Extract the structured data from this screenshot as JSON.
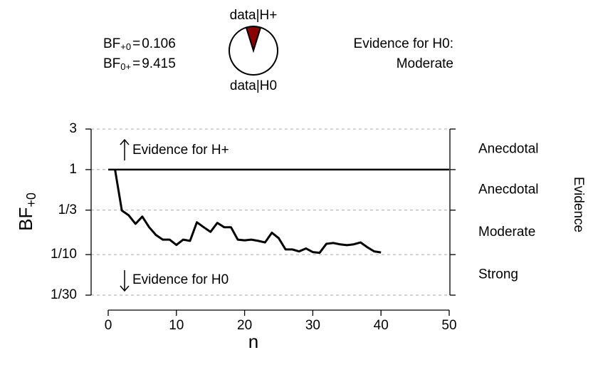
{
  "chart_data": {
    "type": "line",
    "bayes_factors": [
      {
        "symbol": "BF",
        "subscript": "+0",
        "sign": "=",
        "value": 0.106
      },
      {
        "symbol": "BF",
        "subscript": "0+",
        "sign": "=",
        "value": 9.415
      }
    ],
    "pie": {
      "labels": [
        "data|H+",
        "data|H0"
      ],
      "values": [
        0.096,
        0.904
      ],
      "colors": [
        "#8b0000",
        "#ffffff"
      ]
    },
    "evidence_summary": [
      "Evidence for H0:",
      "Moderate"
    ],
    "annotations": [
      "Evidence for H+",
      "Evidence for H0"
    ],
    "xlabel": "n",
    "ylabel": {
      "text": "BF",
      "subscript": "+0"
    },
    "y2label": "Evidence",
    "evidence_bands": [
      "Anecdotal",
      "Anecdotal",
      "Moderate",
      "Strong"
    ],
    "x": [
      1,
      2,
      3,
      4,
      5,
      6,
      7,
      8,
      9,
      10,
      11,
      12,
      13,
      14,
      15,
      16,
      17,
      18,
      19,
      20,
      21,
      22,
      23,
      24,
      25,
      26,
      27,
      28,
      29,
      30,
      31,
      32,
      33,
      34,
      35,
      36,
      37,
      38,
      39,
      40
    ],
    "values": [
      1,
      0.33,
      0.29,
      0.23,
      0.28,
      0.21,
      0.17,
      0.15,
      0.15,
      0.13,
      0.15,
      0.145,
      0.24,
      0.21,
      0.185,
      0.236,
      0.21,
      0.21,
      0.15,
      0.147,
      0.15,
      0.145,
      0.139,
      0.181,
      0.156,
      0.115,
      0.115,
      0.109,
      0.118,
      0.107,
      0.105,
      0.134,
      0.137,
      0.132,
      0.129,
      0.132,
      0.139,
      0.122,
      0.109,
      0.106
    ],
    "color": "#000000",
    "xlim": [
      0,
      50
    ],
    "xticks": [
      0,
      10,
      20,
      30,
      40,
      50
    ],
    "ylim": [
      0.03333,
      3
    ],
    "yticks": [
      3,
      1,
      {
        "value": 0.3333,
        "label": "1/3"
      },
      {
        "value": 0.1,
        "label": "1/10"
      },
      {
        "value": 0.03333,
        "label": "1/30"
      }
    ],
    "log_y": true,
    "grid": true,
    "reference_line": 1
  }
}
